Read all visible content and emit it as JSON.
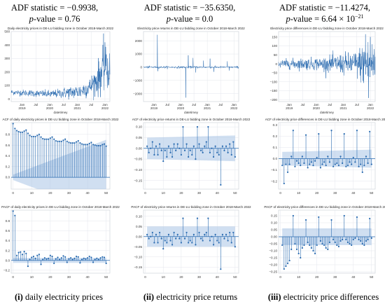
{
  "headers": [
    {
      "line1": "ADF statistic = −0.9938,",
      "line2": "p-value = 0.76"
    },
    {
      "line1": "ADF statistic = −35.6350,",
      "line2": "p-value = 0.0"
    },
    {
      "line1": "ADF statistic = −11.4274,",
      "line2": "p-value = 6.64 × 10−21"
    }
  ],
  "captions": [
    {
      "num": "(i)",
      "text": " daily electricity prices"
    },
    {
      "num": "(ii)",
      "text": " electricity price returns"
    },
    {
      "num": "(iii)",
      "text": " electricity price differences"
    }
  ],
  "colors": {
    "series": "#2a6bb0",
    "band": "#a9c4e6",
    "grid": "#e3e6ec",
    "frame": "#c8ccd4"
  },
  "chart_data": [
    {
      "type": "line",
      "title": "Daily electricity prices in DE-LU bidding zone in October 2018-March 2022",
      "xlabel": "datetimey",
      "ylim": [
        -20,
        500
      ],
      "yticks": [
        0,
        100,
        200,
        300,
        400,
        500
      ],
      "xtick_labels": [
        [
          "Jan",
          "2019"
        ],
        [
          "Jul",
          ""
        ],
        [
          "Jan",
          "2020"
        ],
        [
          "Jul",
          ""
        ],
        [
          "Jan",
          "2021"
        ],
        [
          "Jul",
          ""
        ],
        [
          "Jan",
          "2022"
        ]
      ],
      "xtick_pos": [
        0.11,
        0.25,
        0.39,
        0.53,
        0.67,
        0.81,
        0.95
      ],
      "series": [
        {
          "kind": "price",
          "start": 50,
          "levels": [
            [
              0.0,
              50
            ],
            [
              0.4,
              35
            ],
            [
              0.55,
              45
            ],
            [
              0.7,
              55
            ],
            [
              0.8,
              90
            ],
            [
              0.88,
              150
            ],
            [
              0.93,
              220
            ],
            [
              1.0,
              210
            ]
          ],
          "noise": [
            [
              0.0,
              10
            ],
            [
              0.45,
              15
            ],
            [
              0.8,
              35
            ],
            [
              0.92,
              80
            ],
            [
              1.0,
              70
            ]
          ],
          "spikes": [
            [
              0.935,
              485
            ],
            [
              0.95,
              420
            ],
            [
              0.965,
              330
            ]
          ]
        }
      ]
    },
    {
      "type": "line",
      "title": "Electricity price returns in DE-LU bidding zone in October 2018-March 2022",
      "xlabel": "datetimey",
      "ylim": [
        -2600,
        2700
      ],
      "yticks": [
        -2000,
        -1000,
        0,
        1000,
        2000
      ],
      "xtick_labels": [
        [
          "Jan",
          "2019"
        ],
        [
          "Jul",
          ""
        ],
        [
          "Jan",
          "2020"
        ],
        [
          "Jul",
          ""
        ],
        [
          "Jan",
          "2021"
        ],
        [
          "Jul",
          ""
        ],
        [
          "Jan",
          "2022"
        ]
      ],
      "xtick_pos": [
        0.11,
        0.25,
        0.39,
        0.53,
        0.67,
        0.81,
        0.95
      ],
      "series": [
        {
          "kind": "returns",
          "noise": 40,
          "spikes": [
            [
              0.145,
              2450
            ],
            [
              0.15,
              -300
            ],
            [
              0.445,
              -2300
            ],
            [
              0.47,
              900
            ],
            [
              0.52,
              700
            ],
            [
              0.55,
              -400
            ],
            [
              0.63,
              500
            ],
            [
              0.7,
              650
            ],
            [
              0.74,
              -350
            ],
            [
              0.88,
              450
            ],
            [
              0.9,
              -250
            ]
          ]
        }
      ]
    },
    {
      "type": "line",
      "title": "Electricity price differences in DE-LU bidding zone in October 2018-March 2022",
      "xlabel": "datetimey",
      "ylim": [
        -210,
        180
      ],
      "yticks": [
        -200,
        -150,
        -100,
        -50,
        0,
        50,
        100,
        150
      ],
      "xtick_labels": [
        [
          "Jan",
          "2019"
        ],
        [
          "Jul",
          ""
        ],
        [
          "Jan",
          "2020"
        ],
        [
          "Jul",
          ""
        ],
        [
          "Jan",
          "2021"
        ],
        [
          "Jul",
          ""
        ],
        [
          "Jan",
          "2022"
        ]
      ],
      "xtick_pos": [
        0.11,
        0.25,
        0.39,
        0.53,
        0.67,
        0.81,
        0.95
      ],
      "series": [
        {
          "kind": "diff",
          "noise": [
            [
              0.0,
              12
            ],
            [
              0.45,
              18
            ],
            [
              0.8,
              35
            ],
            [
              0.92,
              70
            ],
            [
              1.0,
              60
            ]
          ],
          "spikes": [
            [
              0.9,
              165
            ],
            [
              0.93,
              -190
            ],
            [
              0.95,
              150
            ]
          ]
        }
      ]
    },
    {
      "type": "stem",
      "title": "ACF of daily electricity prices in DE-LU bidding zone in October 2018-March 2022",
      "xlim": [
        -1,
        52
      ],
      "ylim": [
        -0.22,
        1.02
      ],
      "yticks": [
        0.0,
        0.2,
        0.4,
        0.6,
        0.8
      ],
      "xticks": [
        0,
        10,
        20,
        30,
        40,
        50
      ],
      "band": "growing",
      "band_start": 0.05,
      "band_end": 0.7,
      "lags": [
        0,
        1,
        2,
        3,
        4,
        5,
        6,
        7,
        8,
        9,
        10,
        11,
        12,
        13,
        14,
        15,
        16,
        17,
        18,
        19,
        20,
        21,
        22,
        23,
        24,
        25,
        26,
        27,
        28,
        29,
        30,
        31,
        32,
        33,
        34,
        35,
        36,
        37,
        38,
        39,
        40,
        41,
        42,
        43,
        44,
        45,
        46,
        47,
        48,
        49,
        50
      ],
      "values": [
        1.0,
        0.91,
        0.87,
        0.85,
        0.84,
        0.84,
        0.86,
        0.88,
        0.82,
        0.78,
        0.76,
        0.76,
        0.76,
        0.78,
        0.8,
        0.75,
        0.72,
        0.71,
        0.71,
        0.71,
        0.73,
        0.75,
        0.71,
        0.68,
        0.67,
        0.67,
        0.67,
        0.69,
        0.71,
        0.67,
        0.65,
        0.64,
        0.64,
        0.64,
        0.66,
        0.68,
        0.64,
        0.62,
        0.61,
        0.61,
        0.61,
        0.63,
        0.65,
        0.61,
        0.6,
        0.59,
        0.59,
        0.59,
        0.61,
        0.62,
        0.58
      ]
    },
    {
      "type": "stem",
      "title": "ACF of electricity price returns in DE-LU bidding zone in October 2018-March 2022",
      "xlim": [
        -1,
        52
      ],
      "ylim": [
        -0.19,
        0.12
      ],
      "yticks": [
        -0.15,
        -0.1,
        -0.05,
        0.0,
        0.05,
        0.1
      ],
      "xticks": [
        0,
        10,
        20,
        30,
        40,
        50
      ],
      "band": "flat",
      "band_start": 0.05,
      "band_end": 0.06,
      "lags": [
        1,
        2,
        3,
        4,
        5,
        6,
        7,
        8,
        9,
        10,
        11,
        12,
        13,
        14,
        15,
        16,
        17,
        18,
        19,
        20,
        21,
        22,
        23,
        24,
        25,
        26,
        27,
        28,
        29,
        30,
        31,
        32,
        33,
        34,
        35,
        36,
        37,
        38,
        39,
        40,
        41,
        42,
        43,
        44,
        45,
        46,
        47,
        48,
        49,
        50
      ],
      "values": [
        0.01,
        -0.02,
        0.0,
        0.03,
        -0.03,
        0.01,
        -0.03,
        0.02,
        -0.01,
        -0.06,
        -0.01,
        -0.04,
        0.01,
        -0.02,
        -0.04,
        0.02,
        -0.01,
        0.02,
        0.0,
        -0.03,
        0.1,
        -0.01,
        0.02,
        -0.04,
        -0.01,
        -0.03,
        0.01,
        -0.05,
        0.1,
        0.02,
        -0.01,
        -0.02,
        0.01,
        0.03,
        0.1,
        -0.02,
        0.0,
        -0.04,
        0.01,
        -0.02,
        -0.03,
        -0.17,
        0.01,
        -0.01,
        0.01,
        -0.02,
        0.02,
        -0.03,
        0.03,
        -0.04
      ]
    },
    {
      "type": "stem",
      "title": "ACF of electricity price differences in DE-LU bidding zone in October 2018-March 2022",
      "xlim": [
        -1,
        52
      ],
      "ylim": [
        -0.27,
        0.32
      ],
      "yticks": [
        -0.2,
        -0.1,
        0.0,
        0.1,
        0.2,
        0.3
      ],
      "xticks": [
        0,
        10,
        20,
        30,
        40,
        50
      ],
      "band": "flat",
      "band_start": 0.06,
      "band_end": 0.08,
      "lags": [
        1,
        2,
        3,
        4,
        5,
        6,
        7,
        8,
        9,
        10,
        11,
        12,
        13,
        14,
        15,
        16,
        17,
        18,
        19,
        20,
        21,
        22,
        23,
        24,
        25,
        26,
        27,
        28,
        29,
        30,
        31,
        32,
        33,
        34,
        35,
        36,
        37,
        38,
        39,
        40,
        41,
        42,
        43,
        44,
        45,
        46,
        47,
        48,
        49,
        50
      ],
      "values": [
        -0.06,
        -0.22,
        -0.05,
        -0.12,
        -0.05,
        0.02,
        0.25,
        -0.07,
        -0.02,
        -0.04,
        -0.06,
        0.02,
        -0.04,
        0.21,
        -0.08,
        -0.05,
        -0.03,
        -0.06,
        -0.02,
        0.01,
        0.22,
        -0.08,
        -0.05,
        -0.03,
        -0.06,
        0.02,
        -0.03,
        0.25,
        -0.07,
        -0.05,
        -0.04,
        -0.06,
        0.02,
        -0.04,
        0.22,
        -0.07,
        -0.06,
        -0.03,
        -0.05,
        0.01,
        -0.03,
        0.25,
        -0.07,
        -0.05,
        -0.12,
        -0.06,
        0.02,
        -0.04,
        0.24,
        -0.05
      ]
    },
    {
      "type": "stem",
      "title": "PACF of daily electricity prices in DE-LU bidding zone in October 2018-March 2022",
      "xlim": [
        -1,
        52
      ],
      "ylim": [
        -0.26,
        1.02
      ],
      "yticks": [
        -0.2,
        0.0,
        0.2,
        0.4,
        0.6,
        0.8
      ],
      "xticks": [
        0,
        10,
        20,
        30,
        40,
        50
      ],
      "band": "flat",
      "band_start": 0.05,
      "band_end": 0.05,
      "lags": [
        0,
        1,
        2,
        3,
        4,
        5,
        6,
        7,
        8,
        9,
        10,
        11,
        12,
        13,
        14,
        15,
        16,
        17,
        18,
        19,
        20,
        21,
        22,
        23,
        24,
        25,
        26,
        27,
        28,
        29,
        30,
        31,
        32,
        33,
        34,
        35,
        36,
        37,
        38,
        39,
        40,
        41,
        42,
        43,
        44,
        45,
        46,
        47,
        48,
        49,
        50
      ],
      "values": [
        1.0,
        0.91,
        0.1,
        0.16,
        0.17,
        0.12,
        0.18,
        0.14,
        -0.12,
        0.02,
        0.06,
        0.08,
        0.04,
        0.1,
        0.12,
        -0.08,
        0.02,
        0.05,
        0.03,
        0.04,
        0.1,
        0.08,
        -0.06,
        0.03,
        0.06,
        0.02,
        0.05,
        0.09,
        0.07,
        -0.04,
        0.03,
        0.05,
        0.02,
        0.04,
        0.08,
        0.07,
        -0.05,
        0.02,
        0.04,
        0.03,
        0.05,
        0.08,
        0.06,
        -0.04,
        0.02,
        0.04,
        0.02,
        0.05,
        0.07,
        0.06,
        -0.06
      ]
    },
    {
      "type": "stem",
      "title": "PACF of electricity price returns in DE-LU bidding zone in October 2018-March 2022",
      "xlim": [
        -1,
        52
      ],
      "ylim": [
        -0.18,
        0.13
      ],
      "yticks": [
        -0.15,
        -0.1,
        -0.05,
        0.0,
        0.05,
        0.1
      ],
      "xticks": [
        0,
        10,
        20,
        30,
        40,
        50
      ],
      "band": "flat",
      "band_start": 0.05,
      "band_end": 0.05,
      "lags": [
        1,
        2,
        3,
        4,
        5,
        6,
        7,
        8,
        9,
        10,
        11,
        12,
        13,
        14,
        15,
        16,
        17,
        18,
        19,
        20,
        21,
        22,
        23,
        24,
        25,
        26,
        27,
        28,
        29,
        30,
        31,
        32,
        33,
        34,
        35,
        36,
        37,
        38,
        39,
        40,
        41,
        42,
        43,
        44,
        45,
        46,
        47,
        48,
        49,
        50
      ],
      "values": [
        0.01,
        -0.01,
        0.0,
        0.02,
        -0.03,
        0.01,
        -0.03,
        0.02,
        -0.01,
        -0.06,
        -0.02,
        -0.03,
        0.01,
        -0.02,
        -0.04,
        0.02,
        -0.01,
        0.01,
        -0.01,
        -0.03,
        0.09,
        -0.01,
        0.02,
        -0.03,
        -0.02,
        -0.03,
        0.01,
        -0.04,
        0.09,
        0.02,
        -0.01,
        -0.02,
        0.01,
        0.02,
        0.09,
        -0.02,
        0.0,
        -0.04,
        0.01,
        -0.02,
        -0.03,
        -0.16,
        0.01,
        -0.01,
        0.01,
        -0.02,
        0.02,
        -0.03,
        0.02,
        -0.05
      ]
    },
    {
      "type": "stem",
      "title": "PACF of electricity price differences in DE-LU bidding zone in October 2018-March 2022",
      "xlim": [
        -1,
        52
      ],
      "ylim": [
        -0.26,
        0.19
      ],
      "yticks": [
        -0.25,
        -0.2,
        -0.15,
        -0.1,
        -0.05,
        0.0,
        0.05,
        0.1,
        0.15
      ],
      "xticks": [
        0,
        10,
        20,
        30,
        40,
        50
      ],
      "band": "flat",
      "band_start": 0.06,
      "band_end": 0.06,
      "lags": [
        1,
        2,
        3,
        4,
        5,
        6,
        7,
        8,
        9,
        10,
        11,
        12,
        13,
        14,
        15,
        16,
        17,
        18,
        19,
        20,
        21,
        22,
        23,
        24,
        25,
        26,
        27,
        28,
        29,
        30,
        31,
        32,
        33,
        34,
        35,
        36,
        37,
        38,
        39,
        40,
        41,
        42,
        43,
        44,
        45,
        46,
        47,
        48,
        49,
        50
      ],
      "values": [
        -0.06,
        -0.23,
        -0.21,
        -0.19,
        -0.17,
        -0.09,
        0.15,
        -0.05,
        -0.09,
        -0.12,
        -0.15,
        -0.08,
        -0.06,
        0.12,
        -0.04,
        -0.06,
        -0.08,
        -0.1,
        -0.12,
        -0.06,
        0.14,
        -0.03,
        -0.05,
        -0.06,
        -0.08,
        -0.09,
        -0.04,
        0.12,
        -0.02,
        -0.04,
        -0.06,
        -0.07,
        -0.03,
        -0.02,
        0.15,
        -0.02,
        -0.04,
        -0.05,
        -0.06,
        -0.02,
        -0.01,
        0.14,
        -0.02,
        -0.03,
        -0.05,
        -0.06,
        -0.03,
        -0.02,
        0.13,
        -0.01
      ]
    }
  ]
}
